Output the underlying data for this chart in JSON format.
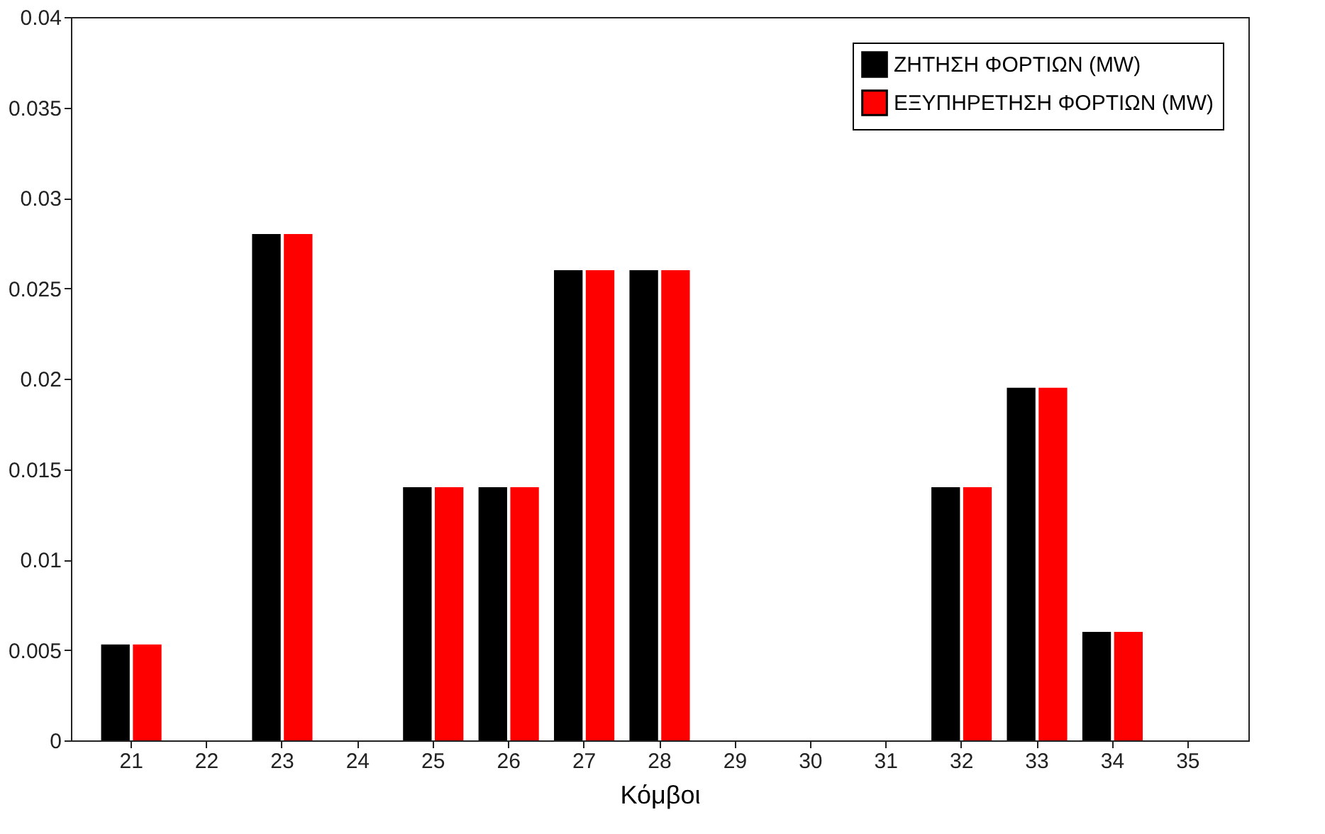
{
  "chart_data": {
    "type": "bar",
    "xlabel": "Κόμβοι",
    "categories": [
      "21",
      "22",
      "23",
      "24",
      "25",
      "26",
      "27",
      "28",
      "29",
      "30",
      "31",
      "32",
      "33",
      "34",
      "35"
    ],
    "series": [
      {
        "name": "ΖΗΤΗΣΗ ΦΟΡΤΙΩΝ (MW)",
        "color": "#000000",
        "values": [
          0.0053,
          0,
          0.028,
          0,
          0.014,
          0.014,
          0.026,
          0.026,
          0,
          0,
          0,
          0.014,
          0.0195,
          0.006,
          0
        ]
      },
      {
        "name": "ΕΞΥΠΗΡΕΤΗΣΗ ΦΟΡΤΙΩΝ (MW)",
        "color": "#ff0000",
        "values": [
          0.0053,
          0,
          0.028,
          0,
          0.014,
          0.014,
          0.026,
          0.026,
          0,
          0,
          0,
          0.014,
          0.0195,
          0.006,
          0
        ]
      }
    ],
    "ylim": [
      0,
      0.04
    ],
    "yticks": [
      0,
      0.005,
      0.01,
      0.015,
      0.02,
      0.025,
      0.03,
      0.035,
      0.04
    ],
    "legend": "top right",
    "grid": false
  }
}
